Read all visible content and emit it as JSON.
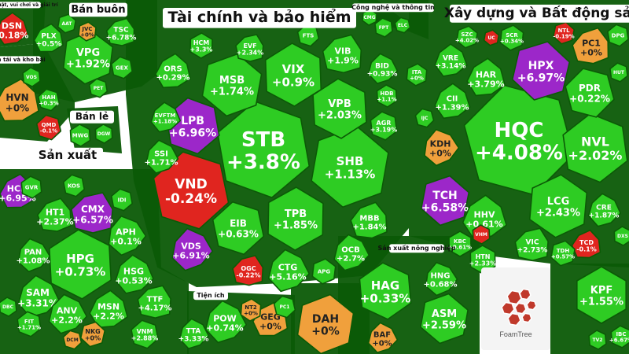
{
  "colors": {
    "up": "#2ecc23",
    "down": "#e0251f",
    "flat": "#f0a03c",
    "ceiling": "#9c27c9",
    "floor": "#1aa3d9",
    "border": "#0b5a06"
  },
  "logo": {
    "text": "FoamTree"
  },
  "chart_data": {
    "type": "treemap",
    "sectors": [
      {
        "name": "Tài chính và bảo hiểm",
        "stocks": [
          {
            "ticker": "STB",
            "change": "+3.8%",
            "status": "up"
          },
          {
            "ticker": "VND",
            "change": "-0.24%",
            "status": "down"
          },
          {
            "ticker": "SHB",
            "change": "+1.13%",
            "status": "up"
          },
          {
            "ticker": "LPB",
            "change": "+6.96%",
            "status": "ceiling"
          },
          {
            "ticker": "VIX",
            "change": "+0.9%",
            "status": "up"
          },
          {
            "ticker": "MSB",
            "change": "+1.74%",
            "status": "up"
          },
          {
            "ticker": "VPB",
            "change": "+2.03%",
            "status": "up"
          },
          {
            "ticker": "TPB",
            "change": "+1.85%",
            "status": "up"
          },
          {
            "ticker": "EIB",
            "change": "+0.63%",
            "status": "up"
          },
          {
            "ticker": "CTG",
            "change": "+5.16%",
            "status": "up"
          },
          {
            "ticker": "VDS",
            "change": "+6.91%",
            "status": "ceiling"
          },
          {
            "ticker": "VIB",
            "change": "+1.9%",
            "status": "up"
          },
          {
            "ticker": "MBB",
            "change": "+1.84%",
            "status": "up"
          },
          {
            "ticker": "OCB",
            "change": "+2.7%",
            "status": "up"
          },
          {
            "ticker": "ORS",
            "change": "+0.29%",
            "status": "up"
          },
          {
            "ticker": "SSI",
            "change": "+1.71%",
            "status": "up"
          },
          {
            "ticker": "BID",
            "change": "+0.93%",
            "status": "up"
          },
          {
            "ticker": "HCM",
            "change": "+3.3%",
            "status": "up"
          },
          {
            "ticker": "EVF",
            "change": "+2.34%",
            "status": "up"
          },
          {
            "ticker": "AGR",
            "change": "+3.19%",
            "status": "up"
          },
          {
            "ticker": "HDB",
            "change": "+1.1%",
            "status": "up"
          },
          {
            "ticker": "OGC",
            "change": "-0.22%",
            "status": "down"
          },
          {
            "ticker": "APG",
            "change": "",
            "status": "up"
          },
          {
            "ticker": "FTS",
            "change": "",
            "status": "up"
          },
          {
            "ticker": "EVFTM",
            "change": "+1.18%",
            "status": "up"
          }
        ]
      },
      {
        "name": "Xây dựng và Bất động sản",
        "stocks": [
          {
            "ticker": "HQC",
            "change": "+4.08%",
            "status": "up"
          },
          {
            "ticker": "NVL",
            "change": "+2.02%",
            "status": "up"
          },
          {
            "ticker": "HPX",
            "change": "+6.97%",
            "status": "ceiling"
          },
          {
            "ticker": "TCH",
            "change": "+6.58%",
            "status": "ceiling"
          },
          {
            "ticker": "LCG",
            "change": "+2.43%",
            "status": "up"
          },
          {
            "ticker": "PDR",
            "change": "+0.22%",
            "status": "up"
          },
          {
            "ticker": "HHV",
            "change": "+0.61%",
            "status": "up"
          },
          {
            "ticker": "KDH",
            "change": "+0%",
            "status": "flat"
          },
          {
            "ticker": "PC1",
            "change": "+0%",
            "status": "flat"
          },
          {
            "ticker": "HAR",
            "change": "+3.79%",
            "status": "up"
          },
          {
            "ticker": "VRE",
            "change": "+3.14%",
            "status": "up"
          },
          {
            "ticker": "CII",
            "change": "+1.39%",
            "status": "up"
          },
          {
            "ticker": "VIC",
            "change": "+2.73%",
            "status": "up"
          },
          {
            "ticker": "CRE",
            "change": "+1.87%",
            "status": "up"
          },
          {
            "ticker": "TCD",
            "change": "-0.1%",
            "status": "down"
          },
          {
            "ticker": "HTN",
            "change": "+2.33%",
            "status": "up"
          },
          {
            "ticker": "KBC",
            "change": "+0.61%",
            "status": "up"
          },
          {
            "ticker": "TDH",
            "change": "+0.57%",
            "status": "up"
          },
          {
            "ticker": "ITA",
            "change": "+0%",
            "status": "up"
          },
          {
            "ticker": "SCR",
            "change": "+0.34%",
            "status": "up"
          },
          {
            "ticker": "SZC",
            "change": "+4.02%",
            "status": "up"
          },
          {
            "ticker": "NTL",
            "change": "-0.19%",
            "status": "down"
          },
          {
            "ticker": "DPG",
            "change": "",
            "status": "up"
          },
          {
            "ticker": "HUT",
            "change": "",
            "status": "up"
          },
          {
            "ticker": "DXS",
            "change": "",
            "status": "up"
          },
          {
            "ticker": "VHM",
            "change": "",
            "status": "down"
          },
          {
            "ticker": "IJC",
            "change": "",
            "status": "up"
          },
          {
            "ticker": "UC",
            "change": "",
            "status": "down"
          }
        ]
      },
      {
        "name": "Sản xuất",
        "stocks": [
          {
            "ticker": "HPG",
            "change": "+0.73%",
            "status": "up"
          },
          {
            "ticker": "HCD",
            "change": "+6.95%",
            "status": "ceiling"
          },
          {
            "ticker": "CMX",
            "change": "+6.57%",
            "status": "ceiling"
          },
          {
            "ticker": "HT1",
            "change": "+2.37%",
            "status": "up"
          },
          {
            "ticker": "APH",
            "change": "+0.1%",
            "status": "up"
          },
          {
            "ticker": "SAM",
            "change": "+3.31%",
            "status": "up"
          },
          {
            "ticker": "HSG",
            "change": "+0.53%",
            "status": "up"
          },
          {
            "ticker": "MSN",
            "change": "+2.2%",
            "status": "up"
          },
          {
            "ticker": "ANV",
            "change": "+2.2%",
            "status": "up"
          },
          {
            "ticker": "TTF",
            "change": "+4.17%",
            "status": "up"
          },
          {
            "ticker": "PAN",
            "change": "+1.08%",
            "status": "up"
          },
          {
            "ticker": "VNM",
            "change": "+2.88%",
            "status": "up"
          },
          {
            "ticker": "NKG",
            "change": "+0%",
            "status": "flat"
          },
          {
            "ticker": "GVR",
            "change": "",
            "status": "up"
          },
          {
            "ticker": "KOS",
            "change": "",
            "status": "up"
          },
          {
            "ticker": "IDI",
            "change": "",
            "status": "up"
          },
          {
            "ticker": "FIT",
            "change": "+1.71%",
            "status": "up"
          },
          {
            "ticker": "DCM",
            "change": "",
            "status": "flat"
          },
          {
            "ticker": "DBC",
            "change": "",
            "status": "up"
          }
        ]
      },
      {
        "name": "Bán buôn",
        "stocks": [
          {
            "ticker": "VPG",
            "change": "+1.92%",
            "status": "up"
          },
          {
            "ticker": "PLX",
            "change": "+0.5%",
            "status": "up"
          },
          {
            "ticker": "TSC",
            "change": "+6.78%",
            "status": "up"
          },
          {
            "ticker": "JVC",
            "change": "+0%",
            "status": "flat"
          },
          {
            "ticker": "AAT",
            "change": "",
            "status": "up"
          },
          {
            "ticker": "GEX",
            "change": "",
            "status": "up"
          },
          {
            "ticker": "PET",
            "change": "",
            "status": "up"
          }
        ]
      },
      {
        "name": "Bán lẻ",
        "stocks": [
          {
            "ticker": "QMD",
            "change": "-0.1%",
            "status": "down"
          },
          {
            "ticker": "MWG",
            "change": "",
            "status": "up"
          },
          {
            "ticker": "DGW",
            "change": "",
            "status": "up"
          }
        ]
      },
      {
        "name": "Vận tải và kho bãi",
        "stocks": [
          {
            "ticker": "HVN",
            "change": "+0%",
            "status": "flat"
          },
          {
            "ticker": "HAH",
            "change": "+0.3%",
            "status": "up"
          },
          {
            "ticker": "VOS",
            "change": "",
            "status": "up"
          }
        ]
      },
      {
        "name": "Nghệ thuật, vui chơi và giải trí",
        "stocks": [
          {
            "ticker": "DSN",
            "change": "-0.18%",
            "status": "down"
          }
        ]
      },
      {
        "name": "Công nghệ và thông tin",
        "stocks": [
          {
            "ticker": "FPT",
            "change": "",
            "status": "up"
          },
          {
            "ticker": "ELC",
            "change": "",
            "status": "up"
          },
          {
            "ticker": "CMG",
            "change": "",
            "status": "up"
          }
        ]
      },
      {
        "name": "Tiện ích",
        "stocks": [
          {
            "ticker": "POW",
            "change": "+0.74%",
            "status": "up"
          },
          {
            "ticker": "GEG",
            "change": "+0%",
            "status": "flat"
          },
          {
            "ticker": "TTA",
            "change": "+3.33%",
            "status": "up"
          },
          {
            "ticker": "NT2",
            "change": "+0%",
            "status": "flat"
          },
          {
            "ticker": "PC1",
            "change": "",
            "status": "up"
          }
        ]
      },
      {
        "name": "Sản xuất nông nghiệp",
        "stocks": [
          {
            "ticker": "HAG",
            "change": "+0.33%",
            "status": "up"
          },
          {
            "ticker": "ASM",
            "change": "+2.59%",
            "status": "up"
          },
          {
            "ticker": "HNG",
            "change": "+0.68%",
            "status": "up"
          },
          {
            "ticker": "BAF",
            "change": "+0%",
            "status": "flat"
          }
        ]
      },
      {
        "name": "",
        "stocks": [
          {
            "ticker": "DAH",
            "change": "+0%",
            "status": "flat"
          },
          {
            "ticker": "KPF",
            "change": "+1.55%",
            "status": "up"
          },
          {
            "ticker": "TV2",
            "change": "",
            "status": "up"
          },
          {
            "ticker": "IBC",
            "change": "+6.67%",
            "status": "up"
          }
        ]
      }
    ]
  }
}
